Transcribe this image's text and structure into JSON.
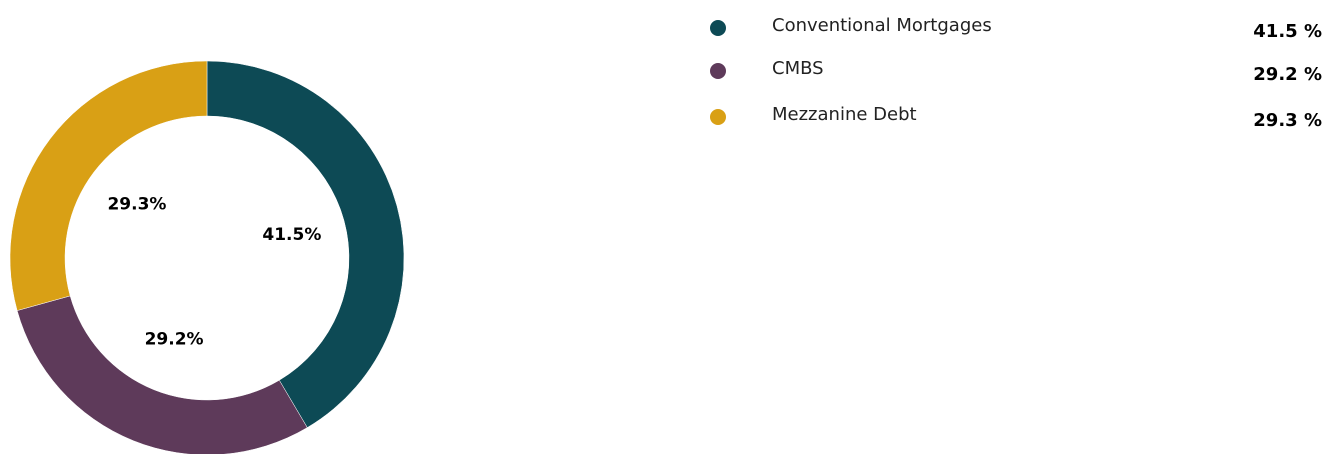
{
  "chart_data": {
    "type": "pie",
    "categories": [
      "Conventional Mortgages",
      "CMBS",
      "Mezzanine Debt"
    ],
    "values": [
      41.5,
      29.2,
      29.3
    ],
    "value_labels": [
      "41.5%",
      "29.2%",
      "29.3%"
    ],
    "legend_value_labels": [
      "41.5 %",
      "29.2 %",
      "29.3 %"
    ],
    "colors": [
      "#0d4a55",
      "#5e3a5a",
      "#d9a015"
    ],
    "legend": "top-right"
  }
}
